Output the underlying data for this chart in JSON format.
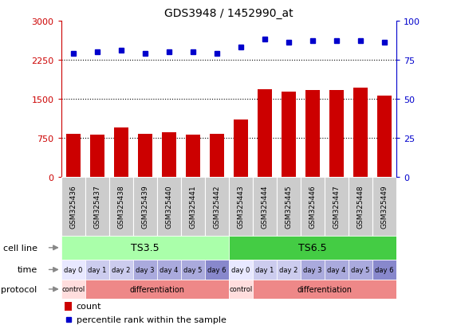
{
  "title": "GDS3948 / 1452990_at",
  "samples": [
    "GSM325436",
    "GSM325437",
    "GSM325438",
    "GSM325439",
    "GSM325440",
    "GSM325441",
    "GSM325442",
    "GSM325443",
    "GSM325444",
    "GSM325445",
    "GSM325446",
    "GSM325447",
    "GSM325448",
    "GSM325449"
  ],
  "counts": [
    820,
    810,
    950,
    820,
    850,
    810,
    830,
    1100,
    1680,
    1640,
    1660,
    1670,
    1720,
    1560
  ],
  "percentiles": [
    79,
    80,
    81,
    79,
    80,
    80,
    79,
    83,
    88,
    86,
    87,
    87,
    87,
    86
  ],
  "ylim_left": [
    0,
    3000
  ],
  "ylim_right": [
    0,
    100
  ],
  "yticks_left": [
    0,
    750,
    1500,
    2250,
    3000
  ],
  "yticks_right": [
    0,
    25,
    50,
    75,
    100
  ],
  "bar_color": "#cc0000",
  "dot_color": "#0000cc",
  "ts35_color": "#aaffaa",
  "ts65_color": "#44cc44",
  "time_labels": [
    "day 0",
    "day 1",
    "day 2",
    "day 3",
    "day 4",
    "day 5",
    "day 6",
    "day 0",
    "day 1",
    "day 2",
    "day 3",
    "day 4",
    "day 5",
    "day 6"
  ],
  "time_color_map": {
    "day 0": "#e8e8ff",
    "day 1": "#ccccee",
    "day 2": "#ccccee",
    "day 3": "#aaaadd",
    "day 4": "#aaaadd",
    "day 5": "#aaaadd",
    "day 6": "#8888cc"
  },
  "prot_blocks": [
    [
      0,
      1,
      "control",
      "#ffdddd"
    ],
    [
      1,
      6,
      "differentiation",
      "#ee8888"
    ],
    [
      7,
      1,
      "control",
      "#ffdddd"
    ],
    [
      8,
      6,
      "differentiation",
      "#ee8888"
    ]
  ],
  "legend_count_color": "#cc0000",
  "legend_pct_color": "#0000cc",
  "sample_box_color": "#cccccc",
  "label_color": "#666666",
  "arrow_color": "#888888"
}
